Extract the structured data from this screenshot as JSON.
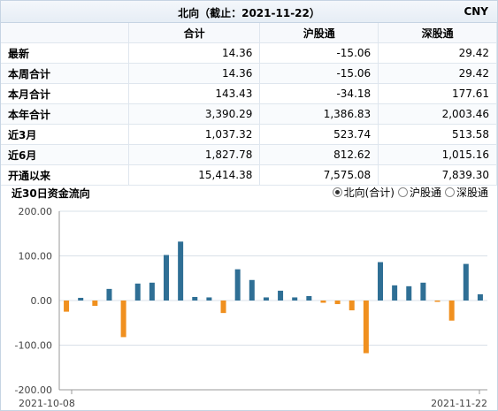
{
  "header": {
    "title": "北向（截止：2021-11-22）",
    "currency": "CNY"
  },
  "table": {
    "columns": [
      "合计",
      "沪股通",
      "深股通"
    ],
    "rows": [
      {
        "label": "最新",
        "values": [
          "14.36",
          "-15.06",
          "29.42"
        ]
      },
      {
        "label": "本周合计",
        "values": [
          "14.36",
          "-15.06",
          "29.42"
        ]
      },
      {
        "label": "本月合计",
        "values": [
          "143.43",
          "-34.18",
          "177.61"
        ]
      },
      {
        "label": "本年合计",
        "values": [
          "3,390.29",
          "1,386.83",
          "2,003.46"
        ]
      },
      {
        "label": "近3月",
        "values": [
          "1,037.32",
          "523.74",
          "513.58"
        ]
      },
      {
        "label": "近6月",
        "values": [
          "1,827.78",
          "812.62",
          "1,015.16"
        ]
      },
      {
        "label": "开通以来",
        "values": [
          "15,414.38",
          "7,575.08",
          "7,839.30"
        ]
      }
    ]
  },
  "chart_header": {
    "title": "近30日资金流向",
    "options": [
      {
        "label": "北向(合计)",
        "selected": true
      },
      {
        "label": "沪股通",
        "selected": false
      },
      {
        "label": "深股通",
        "selected": false
      }
    ]
  },
  "colors": {
    "positive": "#2f6f95",
    "negative": "#f0901f",
    "grid": "#d9e0e8"
  },
  "chart_data": {
    "type": "bar",
    "title": "近30日资金流向",
    "ylim": [
      -200,
      200
    ],
    "ytick_labels": [
      "200.00",
      "100.00",
      "0.00",
      "-100.00",
      "-200.00"
    ],
    "x_start_label": "2021-10-08",
    "x_end_label": "2021-11-22",
    "series": [
      {
        "name": "北向(合计)",
        "values": [
          -25,
          6,
          -12,
          26,
          -82,
          38,
          40,
          102,
          132,
          8,
          7,
          -28,
          70,
          46,
          7,
          22,
          7,
          10,
          -5,
          -8,
          -22,
          -118,
          86,
          34,
          32,
          40,
          -3,
          -45,
          82,
          14
        ]
      }
    ]
  }
}
